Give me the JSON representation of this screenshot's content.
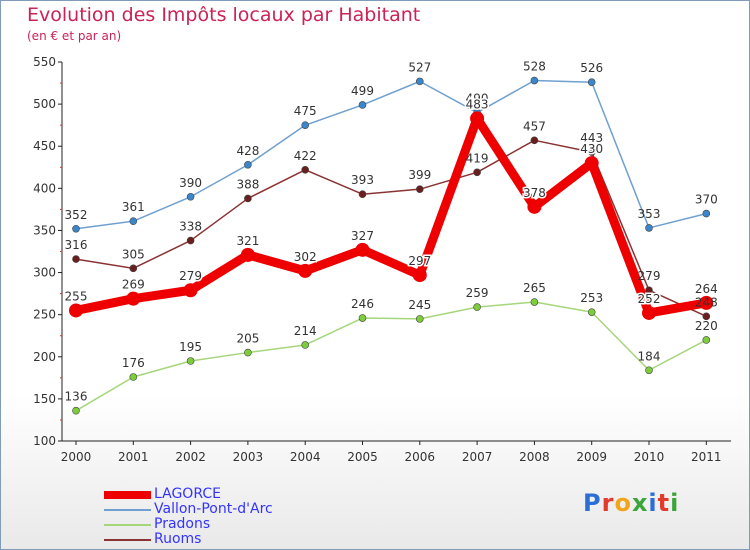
{
  "title": "Evolution des Impôts locaux par Habitant",
  "subtitle": "(en € et par an)",
  "logo": {
    "letters": [
      {
        "ch": "P",
        "color": "#2b6fd6"
      },
      {
        "ch": "r",
        "color": "#e23b2b"
      },
      {
        "ch": "o",
        "color": "#f2a51a"
      },
      {
        "ch": "x",
        "color": "#3aa63a"
      },
      {
        "ch": "i",
        "color": "#2b6fd6"
      },
      {
        "ch": "t",
        "color": "#e23b2b"
      },
      {
        "ch": "i",
        "color": "#3aa63a"
      }
    ]
  },
  "chart_data": {
    "type": "line",
    "title": "Evolution des Impôts locaux par Habitant",
    "subtitle": "(en € et par an)",
    "xlabel": "",
    "ylabel": "",
    "categories": [
      "2000",
      "2001",
      "2002",
      "2003",
      "2004",
      "2005",
      "2006",
      "2007",
      "2008",
      "2009",
      "2010",
      "2011"
    ],
    "ylim": [
      100,
      550
    ],
    "yticks": [
      100,
      150,
      200,
      250,
      300,
      350,
      400,
      450,
      500,
      550
    ],
    "grid": false,
    "legend_position": "bottom-left",
    "series": [
      {
        "name": "LAGORCE",
        "color": "#ee0000",
        "point_color": "#ee0000",
        "label_color": "#ffffff",
        "emphasis": true,
        "values": [
          255,
          269,
          279,
          321,
          302,
          327,
          297,
          483,
          378,
          430,
          252,
          264
        ],
        "labels": [
          "255",
          "269",
          "279",
          "321",
          "302",
          "327",
          "297",
          "483",
          "378",
          "430",
          "252",
          "264"
        ]
      },
      {
        "name": "Vallon-Pont-d'Arc",
        "color": "#6fa0cf",
        "point_color": "#3a86c8",
        "label_color": "#333333",
        "emphasis": false,
        "values": [
          352,
          361,
          390,
          428,
          475,
          499,
          527,
          490,
          528,
          526,
          353,
          370
        ],
        "labels": [
          "352",
          "361",
          "390",
          "428",
          "475",
          "499",
          "527",
          "490",
          "528",
          "526",
          "353",
          "370"
        ]
      },
      {
        "name": "Pradons",
        "color": "#a6d67c",
        "point_color": "#7ccc3c",
        "label_color": "#333333",
        "emphasis": false,
        "values": [
          136,
          176,
          195,
          205,
          214,
          246,
          245,
          259,
          265,
          253,
          184,
          220
        ],
        "labels": [
          "136",
          "176",
          "195",
          "205",
          "214",
          "246",
          "245",
          "259",
          "265",
          "253",
          "184",
          "220"
        ]
      },
      {
        "name": "Ruoms",
        "color": "#8a3333",
        "point_color": "#6a1f1f",
        "label_color": "#333333",
        "emphasis": false,
        "values": [
          316,
          305,
          338,
          388,
          422,
          393,
          399,
          419,
          457,
          443,
          279,
          248
        ],
        "labels": [
          "316",
          "305",
          "338",
          "388",
          "422",
          "393",
          "399",
          "419",
          "457",
          "443",
          "279",
          "248"
        ]
      }
    ]
  }
}
